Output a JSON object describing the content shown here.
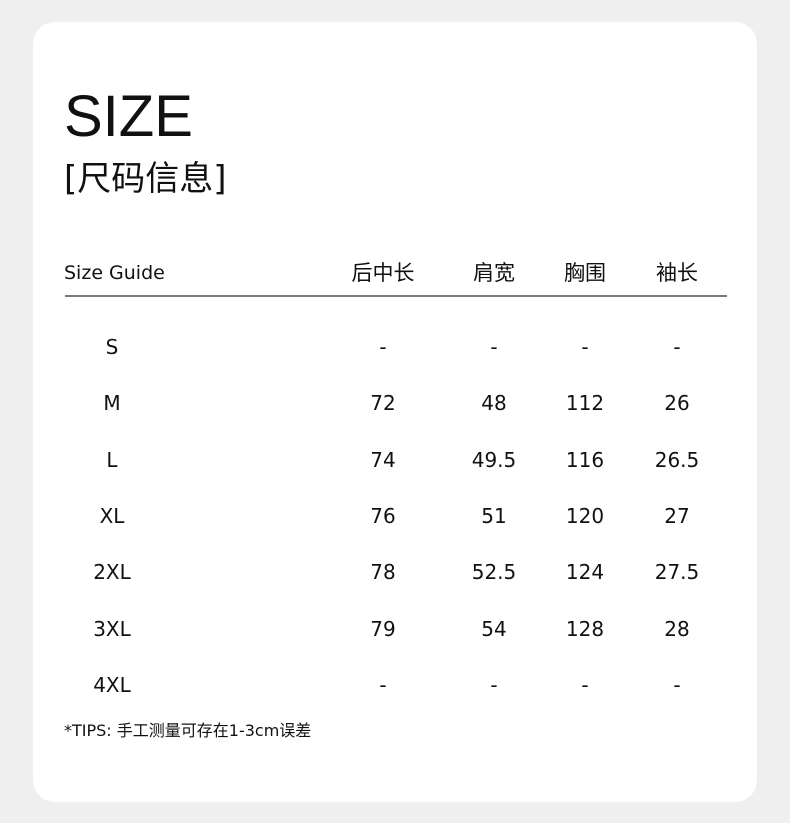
{
  "title": "SIZE",
  "subtitle": "[尺码信息]",
  "table": {
    "corner_label": "Size Guide",
    "columns": [
      "后中长",
      "肩宽",
      "胸围",
      "袖长"
    ],
    "rows": [
      {
        "size": "S",
        "values": [
          "-",
          "-",
          "-",
          "-"
        ]
      },
      {
        "size": "M",
        "values": [
          "72",
          "48",
          "112",
          "26"
        ]
      },
      {
        "size": "L",
        "values": [
          "74",
          "49.5",
          "116",
          "26.5"
        ]
      },
      {
        "size": "XL",
        "values": [
          "76",
          "51",
          "120",
          "27"
        ]
      },
      {
        "size": "2XL",
        "values": [
          "78",
          "52.5",
          "124",
          "27.5"
        ]
      },
      {
        "size": "3XL",
        "values": [
          "79",
          "54",
          "128",
          "28"
        ]
      },
      {
        "size": "4XL",
        "values": [
          "-",
          "-",
          "-",
          "-"
        ]
      }
    ]
  },
  "tips": "*TIPS: 手工测量可存在1-3cm误差"
}
